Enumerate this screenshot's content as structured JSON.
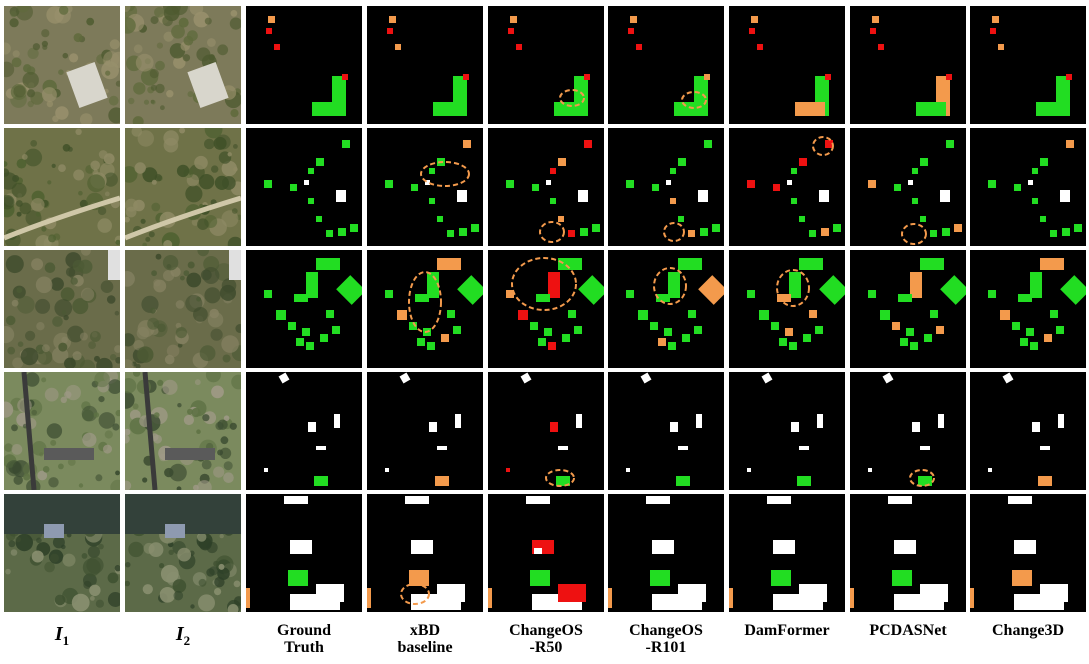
{
  "columns": [
    {
      "label": "I",
      "sub": "1",
      "math": true
    },
    {
      "label": "I",
      "sub": "2",
      "math": true
    },
    {
      "label": "Ground\nTruth"
    },
    {
      "label": "xBD\nbaseline"
    },
    {
      "label": "ChangeOS\n-R50"
    },
    {
      "label": "ChangeOS\n-R101"
    },
    {
      "label": "DamFormer"
    },
    {
      "label": "PCDASNet"
    },
    {
      "label": "Change3D"
    }
  ],
  "legend_colors": {
    "no_damage": "#ffffff",
    "minor_damage": "#22dd22",
    "major_damage": "#f39a4c",
    "destroyed": "#ee1111",
    "background": "#000000",
    "highlight_ellipse": "#f39a4c"
  },
  "rows": 5
}
